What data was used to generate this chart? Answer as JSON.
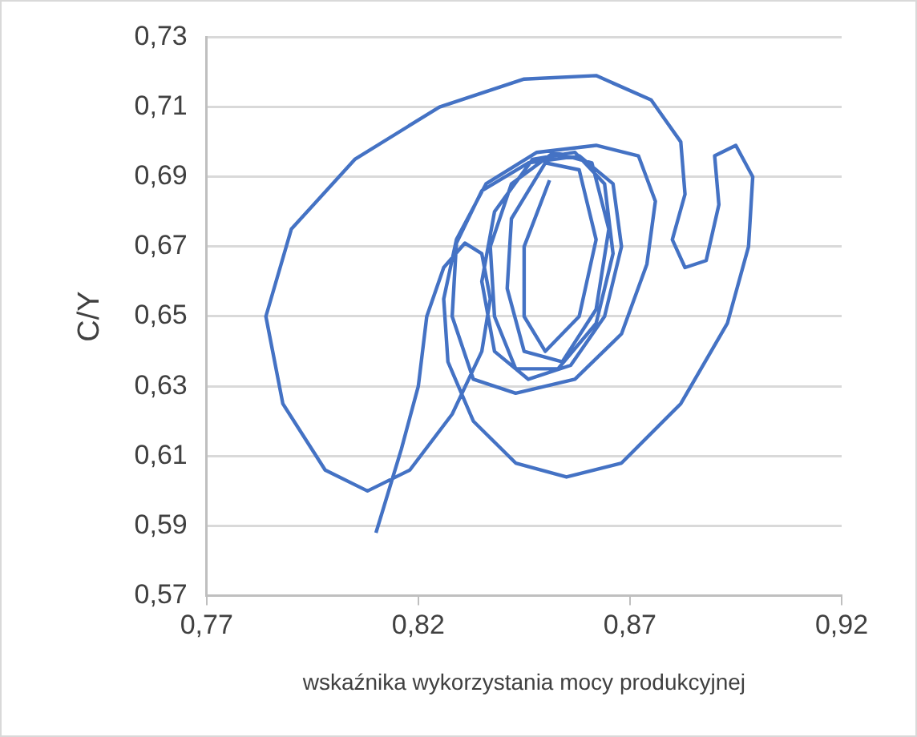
{
  "chart_data": {
    "type": "line",
    "xlabel": "wskaźnika wykorzystania mocy produkcyjnej",
    "ylabel": "C/Y",
    "xlim": [
      0.77,
      0.92
    ],
    "ylim": [
      0.57,
      0.73
    ],
    "xticks": [
      {
        "value": 0.77,
        "label": "0,77"
      },
      {
        "value": 0.82,
        "label": "0,82"
      },
      {
        "value": 0.87,
        "label": "0,87"
      },
      {
        "value": 0.92,
        "label": "0,92"
      }
    ],
    "yticks": [
      {
        "value": 0.57,
        "label": "0,57"
      },
      {
        "value": 0.59,
        "label": "0,59"
      },
      {
        "value": 0.61,
        "label": "0,61"
      },
      {
        "value": 0.63,
        "label": "0,63"
      },
      {
        "value": 0.65,
        "label": "0,65"
      },
      {
        "value": 0.67,
        "label": "0,67"
      },
      {
        "value": 0.69,
        "label": "0,69"
      },
      {
        "value": 0.71,
        "label": "0,71"
      },
      {
        "value": 0.73,
        "label": "0,73"
      }
    ],
    "grid": "y",
    "marker": "none",
    "line_style": "solid",
    "series": [
      {
        "color": "#4472c4",
        "x": [
          0.81,
          0.816,
          0.82,
          0.822,
          0.826,
          0.831,
          0.835,
          0.837,
          0.835,
          0.828,
          0.818,
          0.808,
          0.798,
          0.788,
          0.784,
          0.79,
          0.805,
          0.825,
          0.845,
          0.862,
          0.875,
          0.882,
          0.883,
          0.88,
          0.883,
          0.888,
          0.891,
          0.89,
          0.895,
          0.899,
          0.898,
          0.893,
          0.882,
          0.868,
          0.855,
          0.843,
          0.833,
          0.827,
          0.826,
          0.829,
          0.836,
          0.848,
          0.862,
          0.872,
          0.876,
          0.874,
          0.868,
          0.857,
          0.843,
          0.833,
          0.828,
          0.829,
          0.835,
          0.846,
          0.858,
          0.866,
          0.868,
          0.864,
          0.856,
          0.846,
          0.838,
          0.835,
          0.838,
          0.847,
          0.857,
          0.864,
          0.866,
          0.862,
          0.853,
          0.843,
          0.838,
          0.837,
          0.842,
          0.852,
          0.861,
          0.865,
          0.862,
          0.854,
          0.845,
          0.841,
          0.842,
          0.85,
          0.858,
          0.862,
          0.858,
          0.85,
          0.845,
          0.845,
          0.851
        ],
        "values": [
          0.588,
          0.612,
          0.63,
          0.65,
          0.664,
          0.671,
          0.668,
          0.655,
          0.64,
          0.622,
          0.606,
          0.6,
          0.606,
          0.625,
          0.65,
          0.675,
          0.695,
          0.71,
          0.718,
          0.719,
          0.712,
          0.7,
          0.685,
          0.672,
          0.664,
          0.666,
          0.682,
          0.696,
          0.699,
          0.69,
          0.67,
          0.648,
          0.625,
          0.608,
          0.604,
          0.608,
          0.62,
          0.637,
          0.655,
          0.672,
          0.688,
          0.697,
          0.699,
          0.696,
          0.683,
          0.665,
          0.645,
          0.632,
          0.628,
          0.632,
          0.65,
          0.671,
          0.686,
          0.694,
          0.696,
          0.688,
          0.67,
          0.65,
          0.636,
          0.632,
          0.64,
          0.66,
          0.68,
          0.695,
          0.697,
          0.688,
          0.668,
          0.648,
          0.635,
          0.635,
          0.65,
          0.67,
          0.688,
          0.697,
          0.694,
          0.675,
          0.652,
          0.637,
          0.64,
          0.658,
          0.678,
          0.694,
          0.692,
          0.672,
          0.65,
          0.64,
          0.65,
          0.67,
          0.689
        ]
      }
    ]
  }
}
